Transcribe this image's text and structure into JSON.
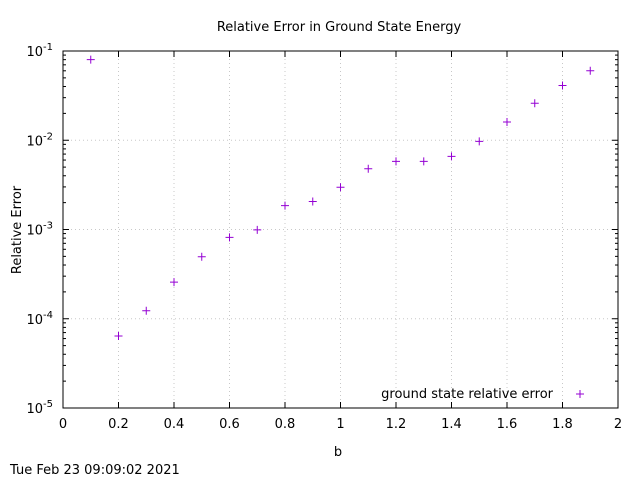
{
  "chart_data": {
    "type": "scatter",
    "title": "Relative Error in Ground State Energy",
    "xlabel": "b",
    "ylabel": "Relative Error",
    "xlim": [
      0,
      2
    ],
    "ylim": [
      1e-05,
      0.1
    ],
    "yscale": "log",
    "grid": true,
    "legend_position": "bottom-right",
    "x_ticks": [
      "0",
      "0.2",
      "0.4",
      "0.6",
      "0.8",
      "1",
      "1.2",
      "1.4",
      "1.6",
      "1.8",
      "2"
    ],
    "y_ticks": [
      {
        "value": 1e-05,
        "base": "10",
        "exp": "-5"
      },
      {
        "value": 0.0001,
        "base": "10",
        "exp": "-4"
      },
      {
        "value": 0.001,
        "base": "10",
        "exp": "-3"
      },
      {
        "value": 0.01,
        "base": "10",
        "exp": "-2"
      },
      {
        "value": 0.1,
        "base": "10",
        "exp": "-1"
      }
    ],
    "series": [
      {
        "name": "ground state relative error",
        "color": "#9400d3",
        "marker": "plus",
        "x": [
          0.1,
          0.2,
          0.3,
          0.4,
          0.5,
          0.6,
          0.7,
          0.8,
          0.9,
          1.0,
          1.1,
          1.2,
          1.3,
          1.4,
          1.5,
          1.6,
          1.7,
          1.8,
          1.9
        ],
        "y": [
          0.08,
          6.4e-05,
          0.000123,
          0.000257,
          0.000495,
          0.000815,
          0.00099,
          0.00185,
          0.00206,
          0.00297,
          0.0048,
          0.0058,
          0.0058,
          0.0066,
          0.0097,
          0.016,
          0.026,
          0.041,
          0.06
        ]
      }
    ]
  },
  "timestamp": "Tue Feb 23 09:09:02 2021"
}
